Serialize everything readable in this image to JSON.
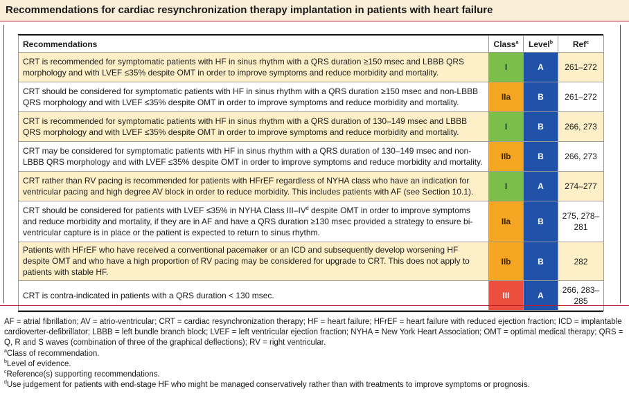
{
  "title": "Recommendations for cardiac resynchronization therapy implantation in patients with heart failure",
  "table": {
    "headers": {
      "recommendations": "Recommendations",
      "class": "Class",
      "class_sup": "a",
      "level": "Level",
      "level_sup": "b",
      "ref": "Ref",
      "ref_sup": "c"
    },
    "rows": [
      {
        "text": "CRT is recommended for symptomatic patients with HF in sinus rhythm with a QRS duration ≥150 msec and LBBB QRS morphology and with LVEF ≤35% despite OMT in order to improve symptoms and reduce morbidity and mortality.",
        "class": "I",
        "level": "A",
        "ref": "261–272",
        "tint": "yellow"
      },
      {
        "text": "CRT should be considered for symptomatic patients with HF in sinus rhythm with a QRS duration ≥150 msec and non-LBBB QRS morphology and with LVEF ≤35% despite OMT in order to improve symptoms and reduce morbidity and mortality.",
        "class": "IIa",
        "level": "B",
        "ref": "261–272",
        "tint": "white"
      },
      {
        "text": "CRT is recommended for symptomatic patients with HF in sinus rhythm with a QRS duration of 130–149 msec and LBBB QRS morphology and with LVEF ≤35% despite OMT in order to improve symptoms and reduce morbidity and mortality.",
        "class": "I",
        "level": "B",
        "ref": "266, 273",
        "tint": "yellow"
      },
      {
        "text": "CRT may be considered for symptomatic patients with HF in sinus rhythm with a QRS duration of 130–149 msec and non-LBBB QRS morphology and with LVEF ≤35% despite OMT in order to improve symptoms and reduce morbidity and mortality.",
        "class": "IIb",
        "level": "B",
        "ref": "266, 273",
        "tint": "white"
      },
      {
        "text": "CRT rather than RV pacing is recommended for patients with HFrEF regardless of NYHA class who have an indication for ventricular pacing and high degree AV block in order to reduce morbidity. This includes patients with AF (see Section 10.1).",
        "class": "I",
        "level": "A",
        "ref": "274–277",
        "tint": "yellow"
      },
      {
        "text_before": "CRT should be considered for patients with LVEF ≤35% in NYHA Class III–IV",
        "text_sup": "d",
        "text_after": " despite OMT in order to improve symptoms and reduce morbidity and mortality, if they are in AF and have a QRS duration ≥130 msec provided a strategy to ensure bi-ventricular capture is in place or the patient is expected to return to sinus rhythm.",
        "class": "IIa",
        "level": "B",
        "ref": "275, 278–281",
        "tint": "white"
      },
      {
        "text": "Patients with HFrEF who have received a conventional pacemaker or an ICD and subsequently develop worsening HF despite OMT and who have a high proportion of RV pacing may be considered for upgrade to CRT. This does not apply to patients with stable HF.",
        "class": "IIb",
        "level": "B",
        "ref": "282",
        "tint": "yellow"
      },
      {
        "text": "CRT is contra-indicated in patients with a QRS duration < 130 msec.",
        "class": "III",
        "level": "A",
        "ref": "266, 283–285",
        "tint": "white"
      }
    ]
  },
  "footnotes": {
    "abbreviations": "AF = atrial fibrillation; AV = atrio-ventricular; CRT = cardiac resynchronization therapy; HF = heart failure; HFrEF = heart failure with reduced ejection fraction; ICD = implantable cardioverter-defibrillator; LBBB = left bundle branch block; LVEF = left ventricular ejection fraction; NYHA = New York Heart Association; OMT = optimal medical therapy; QRS = Q, R and S waves (combination of three of the graphical deflections); RV = right ventricular.",
    "notes": [
      {
        "mark": "a",
        "text": "Class of recommendation."
      },
      {
        "mark": "b",
        "text": "Level of evidence."
      },
      {
        "mark": "c",
        "text": "Reference(s) supporting recommendations."
      },
      {
        "mark": "d",
        "text": "Use judgement for patients with end-stage HF who might be managed conservatively rather than with treatments to improve symptoms or prognosis."
      }
    ]
  }
}
